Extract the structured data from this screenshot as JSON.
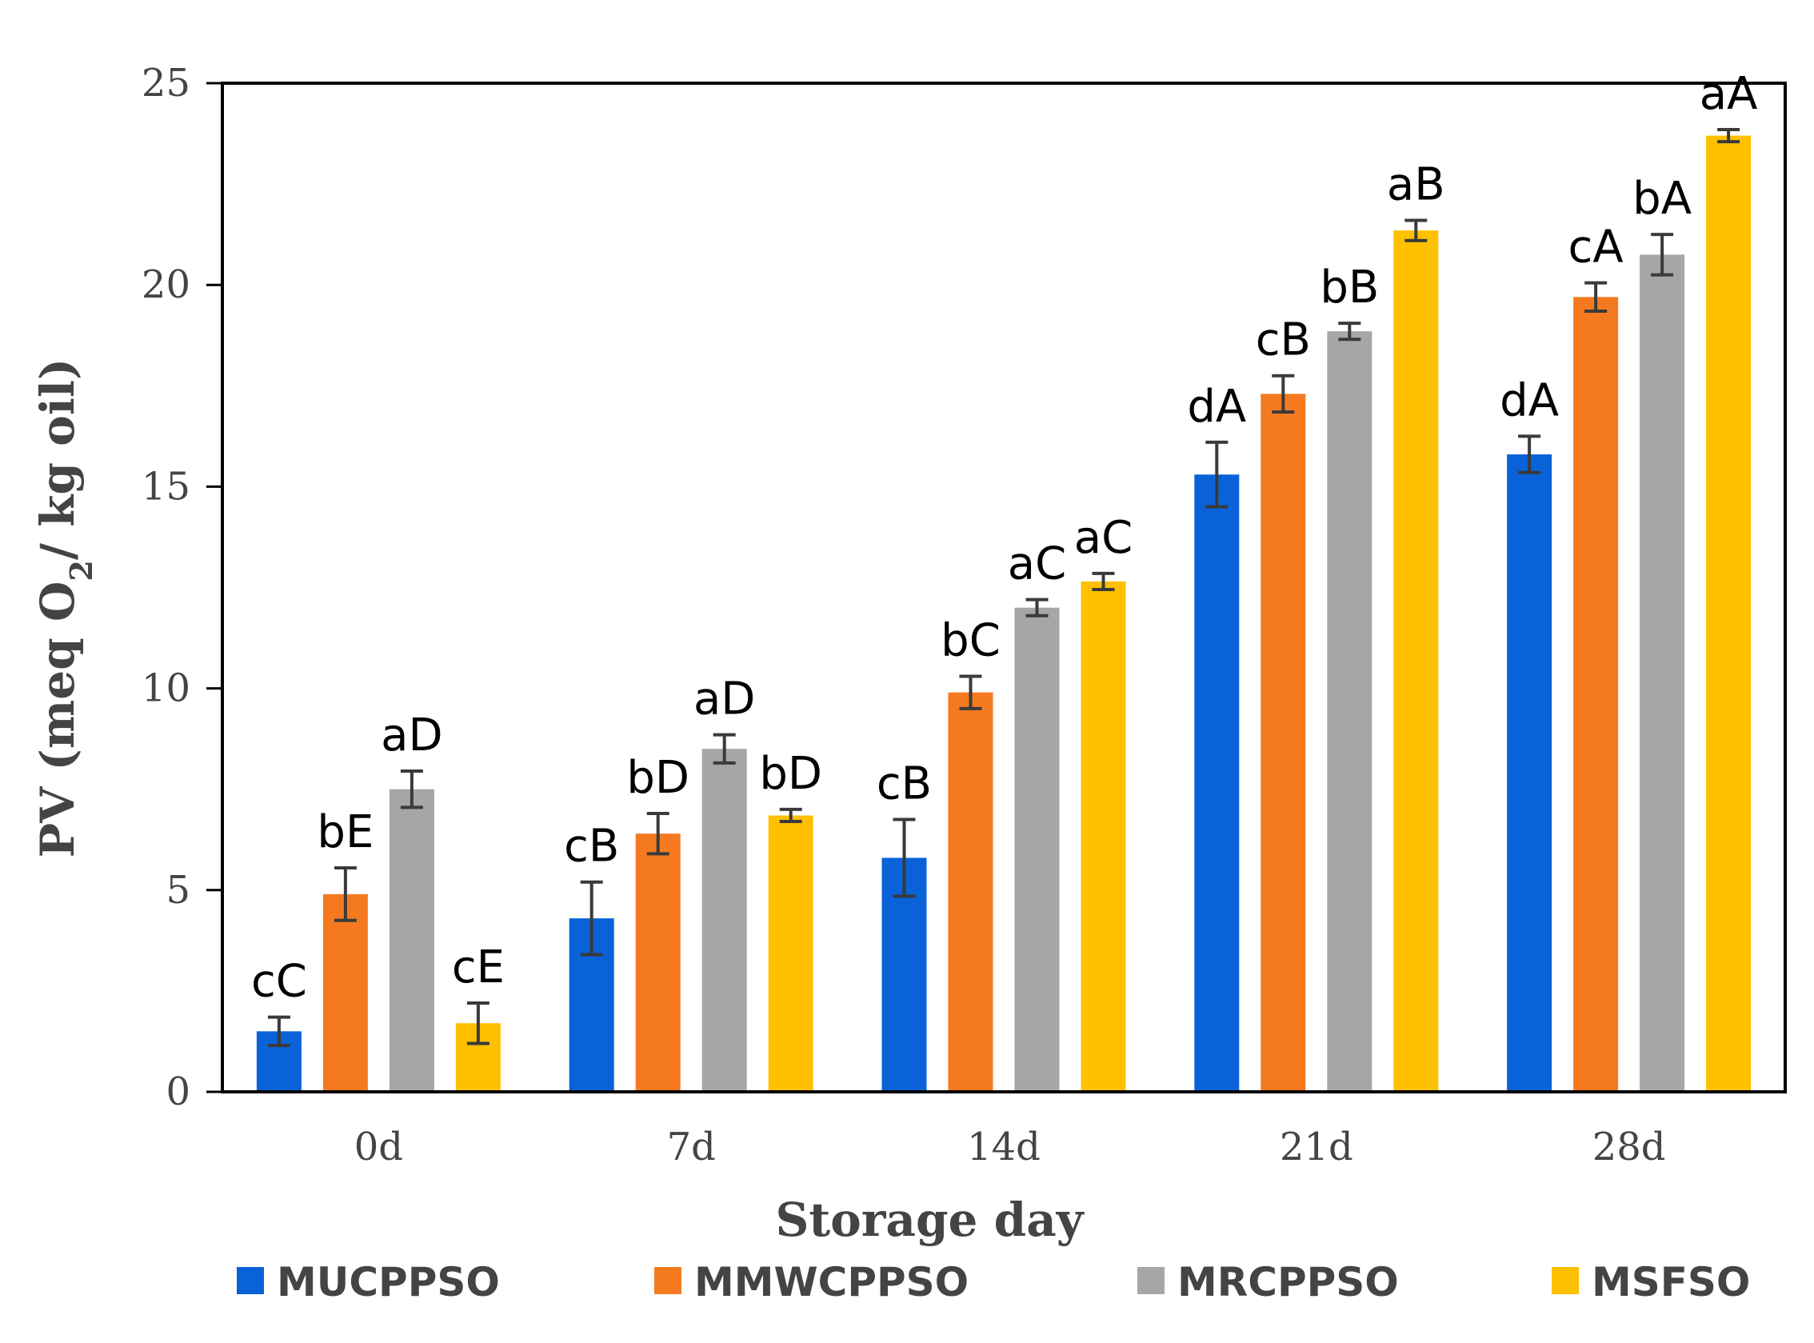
{
  "chart_data": {
    "type": "bar",
    "title": "",
    "xlabel": "Storage day",
    "ylabel_main": "PV (meq O",
    "ylabel_sub": "2",
    "ylabel_tail": "/ kg oil)",
    "ylim": [
      0,
      25
    ],
    "yticks": [
      0,
      5,
      10,
      15,
      20,
      25
    ],
    "ytick_labels": [
      "0",
      "5",
      "10",
      "15",
      "20",
      "25"
    ],
    "grid": false,
    "legend_position": "bottom",
    "categories": [
      "0d",
      "7d",
      "14d",
      "21d",
      "28d"
    ],
    "series": [
      {
        "name": "MUCPPSO",
        "color": "#0a62d8",
        "values": [
          1.5,
          4.3,
          5.8,
          15.3,
          15.8
        ],
        "errors": [
          0.35,
          0.9,
          0.95,
          0.8,
          0.45
        ],
        "labels": [
          "cC",
          "cB",
          "cB",
          "dA",
          "dA"
        ]
      },
      {
        "name": "MMWCPPSO",
        "color": "#f57a1f",
        "values": [
          4.9,
          6.4,
          9.9,
          17.3,
          19.7
        ],
        "errors": [
          0.65,
          0.5,
          0.4,
          0.45,
          0.35
        ],
        "labels": [
          "bE",
          "bD",
          "bC",
          "cB",
          "cA"
        ]
      },
      {
        "name": "MRCPPSO",
        "color": "#a6a6a6",
        "values": [
          7.5,
          8.5,
          12.0,
          18.85,
          20.75
        ],
        "errors": [
          0.45,
          0.35,
          0.2,
          0.2,
          0.5
        ],
        "labels": [
          "aD",
          "aD",
          "aC",
          "bB",
          "bA"
        ]
      },
      {
        "name": "MSFSO",
        "color": "#ffc000",
        "values": [
          1.7,
          6.85,
          12.65,
          21.35,
          23.7
        ],
        "errors": [
          0.5,
          0.15,
          0.2,
          0.25,
          0.15
        ],
        "labels": [
          "cE",
          "bD",
          "aC",
          "aB",
          "aA"
        ]
      }
    ]
  }
}
